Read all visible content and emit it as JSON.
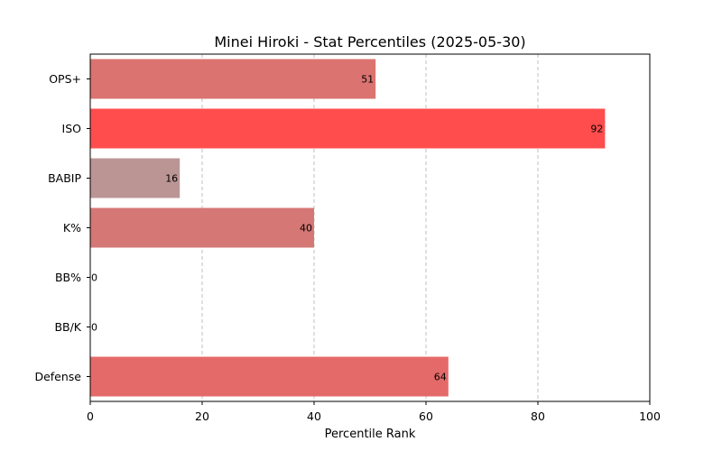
{
  "chart_data": {
    "type": "bar",
    "orientation": "horizontal",
    "title": "Minei Hiroki - Stat Percentiles (2025-05-30)",
    "xlabel": "Percentile Rank",
    "ylabel": "",
    "xlim": [
      0,
      100
    ],
    "x_ticks": [
      0,
      20,
      40,
      60,
      80,
      100
    ],
    "grid": "vertical-dashed",
    "categories": [
      "OPS+",
      "ISO",
      "BABIP",
      "K%",
      "BB%",
      "BB/K",
      "Defense"
    ],
    "values": [
      51,
      92,
      16,
      40,
      0,
      0,
      64
    ],
    "colors": [
      "#db7370",
      "#ff4d4d",
      "#bb9594",
      "#d47775",
      "#aaaaaa",
      "#aaaaaa",
      "#e46a69"
    ]
  }
}
